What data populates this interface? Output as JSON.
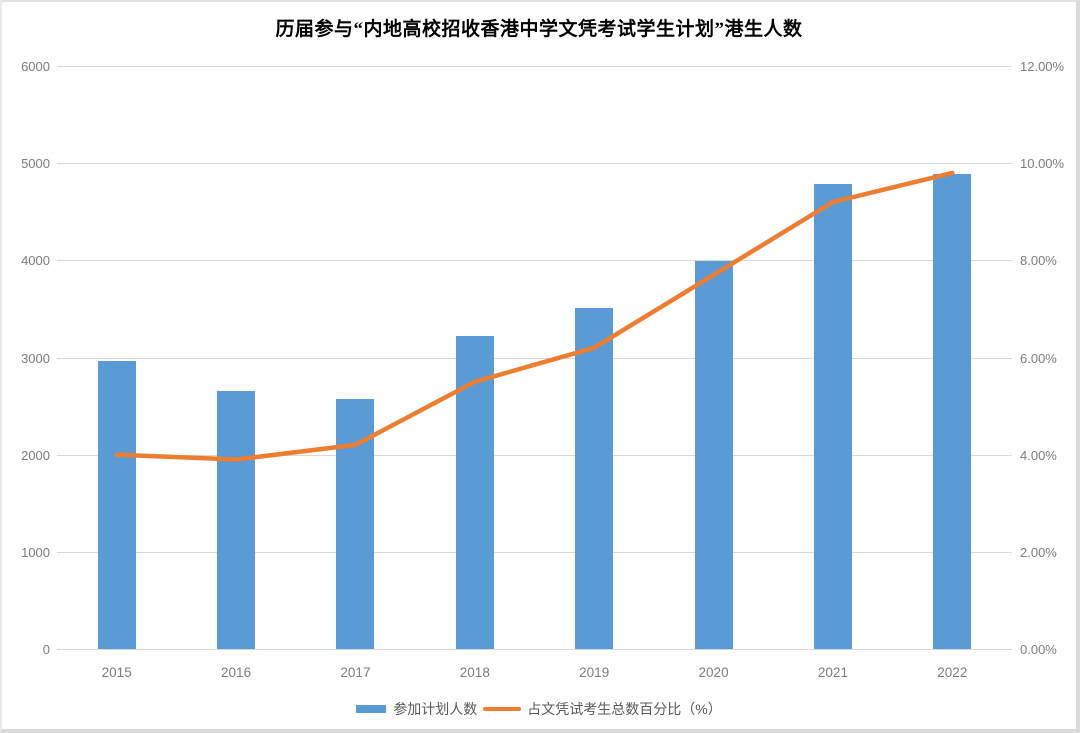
{
  "title": "历届参与“内地高校招收香港中学文凭考试学生计划”港生人数",
  "colors": {
    "bar": "#5B9BD5",
    "line": "#ED7D31",
    "gridline": "#D9D9D9",
    "tick_text": "#7D7D7D",
    "legend_text": "#595959",
    "title_text": "#000000",
    "background": "#FFFFFF"
  },
  "chart_data": {
    "type": "bar",
    "subtype": "combo-bar-line-dual-axis",
    "title": "历届参与“内地高校招收香港中学文凭考试学生计划”港生人数",
    "categories": [
      "2015",
      "2016",
      "2017",
      "2018",
      "2019",
      "2020",
      "2021",
      "2022"
    ],
    "series": [
      {
        "name": "参加计划人数",
        "type": "bar",
        "axis": "left",
        "color": "#5B9BD5",
        "values": [
          2959,
          2660,
          2568,
          3220,
          3511,
          3993,
          4783,
          4890
        ]
      },
      {
        "name": "占文凭试考生总数百分比（%）",
        "type": "line",
        "axis": "right",
        "color": "#ED7D31",
        "values": [
          4.0,
          3.9,
          4.2,
          5.5,
          6.2,
          7.7,
          9.2,
          9.8
        ]
      }
    ],
    "left_axis": {
      "min": 0,
      "max": 6000,
      "step": 1000,
      "ticks": [
        "0",
        "1000",
        "2000",
        "3000",
        "4000",
        "5000",
        "6000"
      ]
    },
    "right_axis": {
      "min": 0,
      "max": 12,
      "step": 2,
      "ticks": [
        "0.00%",
        "2.00%",
        "4.00%",
        "6.00%",
        "8.00%",
        "10.00%",
        "12.00%"
      ]
    },
    "grid": true,
    "legend_position": "bottom",
    "xlabel": "",
    "ylabel": ""
  }
}
